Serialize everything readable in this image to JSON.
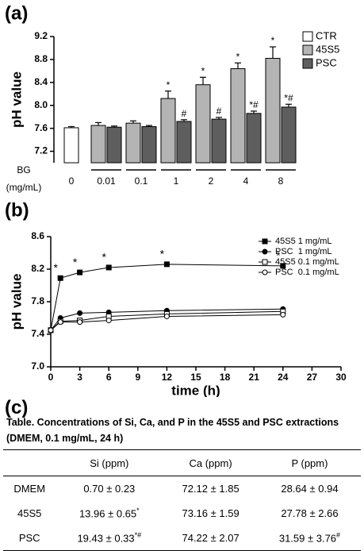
{
  "panel_labels": [
    "(a)",
    "(b)",
    "(c)"
  ],
  "chart_data": [
    {
      "type": "bar",
      "ylabel": "pH value",
      "xlabel": "BG",
      "xlabel_unit": "(mg/mL)",
      "categories": [
        "0",
        "0.01",
        "0.1",
        "1",
        "2",
        "4",
        "8"
      ],
      "ylim": [
        7.0,
        9.2
      ],
      "yticks": [
        7.2,
        7.6,
        {
          "value": 8,
          "label": "8.0"
        },
        8.4,
        8.8,
        9.2
      ],
      "legend": "top-right",
      "series": [
        {
          "name": "CTR",
          "color": "#ffffff",
          "values": [
            7.61,
            null,
            null,
            null,
            null,
            null,
            null
          ],
          "errors": [
            0.02,
            null,
            null,
            null,
            null,
            null,
            null
          ],
          "annotations": [
            null,
            null,
            null,
            null,
            null,
            null,
            null
          ]
        },
        {
          "name": "45S5",
          "color": "#b4b4b4",
          "values": [
            null,
            7.65,
            7.69,
            8.12,
            8.36,
            8.64,
            8.82
          ],
          "errors": [
            null,
            0.05,
            0.04,
            0.13,
            0.13,
            0.1,
            0.2
          ],
          "annotations": [
            null,
            null,
            null,
            "*",
            "*",
            "*",
            "*"
          ]
        },
        {
          "name": "PSC",
          "color": "#5e5e5e",
          "values": [
            null,
            7.62,
            7.63,
            7.72,
            7.76,
            7.86,
            7.97
          ],
          "errors": [
            null,
            0.02,
            0.02,
            0.03,
            0.03,
            0.04,
            0.05
          ],
          "annotations": [
            null,
            null,
            null,
            "#",
            "#",
            "*#",
            "*#"
          ]
        }
      ]
    },
    {
      "type": "line",
      "ylabel": "pH value",
      "xlabel": "time (h)",
      "x": [
        0,
        1,
        3,
        6,
        12,
        24
      ],
      "xlim": [
        0,
        30
      ],
      "xticks": [
        0,
        3,
        6,
        9,
        12,
        15,
        18,
        21,
        24,
        27,
        30
      ],
      "ylim": [
        7.0,
        8.6
      ],
      "yticks": [
        {
          "value": 7,
          "label": "7.0"
        },
        7.4,
        7.8,
        8.2,
        8.6
      ],
      "legend": "top-right",
      "series": [
        {
          "name": "45S5 1 mg/mL",
          "color": "#000000",
          "marker": "square-filled",
          "values": [
            7.45,
            8.09,
            8.16,
            8.22,
            8.26,
            8.24
          ],
          "annotations": [
            null,
            "*",
            "*",
            "*",
            "*",
            "*"
          ]
        },
        {
          "name": "PSC  1 mg/mL",
          "color": "#000000",
          "marker": "circle-filled",
          "values": [
            7.45,
            7.6,
            7.66,
            7.67,
            7.69,
            7.71
          ]
        },
        {
          "name": "45S5 0.1 mg/mL",
          "color": "#000000",
          "marker": "square-open",
          "values": [
            7.45,
            7.56,
            7.57,
            7.62,
            7.65,
            7.68
          ]
        },
        {
          "name": "PSC  0.1 mg/mL",
          "color": "#000000",
          "marker": "circle-open",
          "values": [
            7.45,
            7.55,
            7.55,
            7.57,
            7.62,
            7.64
          ]
        }
      ]
    }
  ],
  "table": {
    "title": "Table. Concentrations of Si, Ca, and P in the 45S5 and PSC extractions (DMEM, 0.1 mg/mL, 24 h)",
    "headers": [
      "Si (ppm)",
      "Ca (ppm)",
      "P (ppm)"
    ],
    "rows": [
      {
        "label": "DMEM",
        "cells": [
          "0.70 ± 0.23",
          "72.12 ± 1.85",
          "28.64 ± 0.94"
        ]
      },
      {
        "label": "45S5",
        "cells": [
          {
            "text": "13.96 ± 0.65",
            "sup": "*"
          },
          "73.16 ± 1.59",
          "27.78 ± 2.66"
        ]
      },
      {
        "label": "PSC",
        "cells": [
          {
            "text": "19.43 ± 0.33",
            "sup": "*#"
          },
          "74.22 ± 2.07",
          {
            "text": "31.59 ± 3.76",
            "sup": "#"
          }
        ]
      }
    ]
  }
}
